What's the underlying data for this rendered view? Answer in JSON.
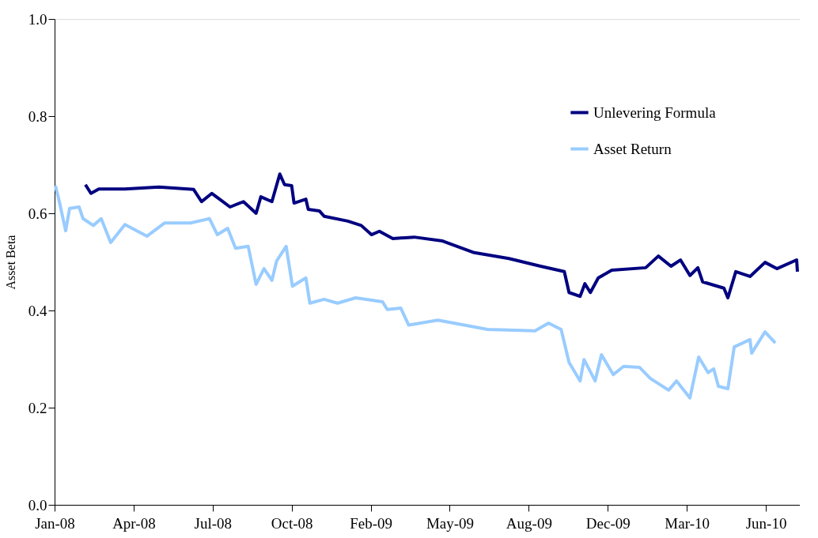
{
  "chart_data": {
    "type": "line",
    "ylabel": "Asset Beta",
    "legend": "top right",
    "grid": false,
    "marker": "none",
    "line_style": "solid",
    "xlim": [
      "2008-01-01",
      "2010-08-01"
    ],
    "xticks": [
      {
        "value": "2008-01-01",
        "label": "Jan-08"
      },
      {
        "value": "2008-04-10",
        "label": "Apr-08"
      },
      {
        "value": "2008-07-19",
        "label": "Jul-08"
      },
      {
        "value": "2008-10-27",
        "label": "Oct-08"
      },
      {
        "value": "2009-02-04",
        "label": "Feb-09"
      },
      {
        "value": "2009-05-15",
        "label": "May-09"
      },
      {
        "value": "2009-08-23",
        "label": "Aug-09"
      },
      {
        "value": "2009-12-01",
        "label": "Dec-09"
      },
      {
        "value": "2010-03-11",
        "label": "Mar-10"
      },
      {
        "value": "2010-06-19",
        "label": "Jun-10"
      }
    ],
    "ylim": [
      0,
      1
    ],
    "yticks": [
      {
        "value": 0,
        "label": "0.0"
      },
      {
        "value": 0.2,
        "label": "0.2"
      },
      {
        "value": 0.4,
        "label": "0.4"
      },
      {
        "value": 0.6,
        "label": "0.6"
      },
      {
        "value": 0.8,
        "label": "0.8"
      },
      {
        "value": 1,
        "label": "1.0"
      }
    ],
    "series": [
      {
        "name": "Unlevering Formula",
        "color": "#000080",
        "x": [
          "2008-02-09",
          "2008-02-16",
          "2008-02-26",
          "2008-03-30",
          "2008-05-12",
          "2008-06-25",
          "2008-07-05",
          "2008-07-18",
          "2008-08-10",
          "2008-08-27",
          "2008-09-12",
          "2008-09-18",
          "2008-10-02",
          "2008-10-12",
          "2008-10-18",
          "2008-10-27",
          "2008-10-30",
          "2008-11-14",
          "2008-11-17",
          "2008-12-01",
          "2008-12-07",
          "2009-01-06",
          "2009-01-23",
          "2009-02-05",
          "2009-02-15",
          "2009-03-04",
          "2009-03-31",
          "2009-05-06",
          "2009-06-15",
          "2009-07-29",
          "2009-09-07",
          "2009-10-07",
          "2009-10-13",
          "2009-10-27",
          "2009-11-02",
          "2009-11-09",
          "2009-11-19",
          "2009-12-06",
          "2010-01-18",
          "2010-02-03",
          "2010-02-19",
          "2010-03-03",
          "2010-03-15",
          "2010-03-25",
          "2010-03-31",
          "2010-04-27",
          "2010-05-02",
          "2010-05-12",
          "2010-05-30",
          "2010-06-18",
          "2010-07-03",
          "2010-07-28",
          "2010-07-29"
        ],
        "values": [
          0.659,
          0.641,
          0.65,
          0.65,
          0.654,
          0.649,
          0.624,
          0.641,
          0.613,
          0.624,
          0.6,
          0.634,
          0.624,
          0.681,
          0.659,
          0.657,
          0.621,
          0.629,
          0.608,
          0.605,
          0.594,
          0.584,
          0.575,
          0.556,
          0.563,
          0.548,
          0.551,
          0.543,
          0.519,
          0.507,
          0.491,
          0.48,
          0.437,
          0.429,
          0.455,
          0.437,
          0.467,
          0.483,
          0.488,
          0.512,
          0.491,
          0.504,
          0.472,
          0.488,
          0.459,
          0.446,
          0.426,
          0.48,
          0.47,
          0.499,
          0.486,
          0.504,
          0.48
        ]
      },
      {
        "name": "Asset Return",
        "color": "#99ccff",
        "x": [
          "2008-01-02",
          "2008-01-07",
          "2008-01-15",
          "2008-01-20",
          "2008-02-01",
          "2008-02-06",
          "2008-02-19",
          "2008-02-29",
          "2008-03-12",
          "2008-03-30",
          "2008-04-27",
          "2008-05-19",
          "2008-06-21",
          "2008-07-15",
          "2008-07-25",
          "2008-08-07",
          "2008-08-17",
          "2008-09-02",
          "2008-09-12",
          "2008-09-22",
          "2008-10-02",
          "2008-10-08",
          "2008-10-20",
          "2008-10-28",
          "2008-11-14",
          "2008-11-19",
          "2008-12-07",
          "2008-12-24",
          "2009-01-16",
          "2009-02-19",
          "2009-02-25",
          "2009-03-14",
          "2009-03-24",
          "2009-04-30",
          "2009-07-02",
          "2009-08-31",
          "2009-09-17",
          "2009-10-03",
          "2009-10-13",
          "2009-10-27",
          "2009-11-01",
          "2009-11-15",
          "2009-11-23",
          "2009-12-08",
          "2009-12-21",
          "2010-01-10",
          "2010-01-24",
          "2010-02-16",
          "2010-02-26",
          "2010-03-15",
          "2010-03-26",
          "2010-04-07",
          "2010-04-14",
          "2010-04-20",
          "2010-05-02",
          "2010-05-10",
          "2010-05-30",
          "2010-06-01",
          "2010-06-18",
          "2010-07-01"
        ],
        "values": [
          0.657,
          0.624,
          0.564,
          0.61,
          0.613,
          0.589,
          0.575,
          0.589,
          0.54,
          0.577,
          0.553,
          0.58,
          0.58,
          0.589,
          0.556,
          0.569,
          0.528,
          0.532,
          0.454,
          0.486,
          0.462,
          0.502,
          0.532,
          0.45,
          0.467,
          0.415,
          0.423,
          0.415,
          0.426,
          0.418,
          0.402,
          0.405,
          0.37,
          0.38,
          0.361,
          0.358,
          0.374,
          0.361,
          0.293,
          0.255,
          0.299,
          0.255,
          0.309,
          0.268,
          0.285,
          0.283,
          0.26,
          0.236,
          0.255,
          0.22,
          0.304,
          0.272,
          0.28,
          0.244,
          0.239,
          0.325,
          0.34,
          0.312,
          0.356,
          0.333
        ]
      }
    ]
  }
}
